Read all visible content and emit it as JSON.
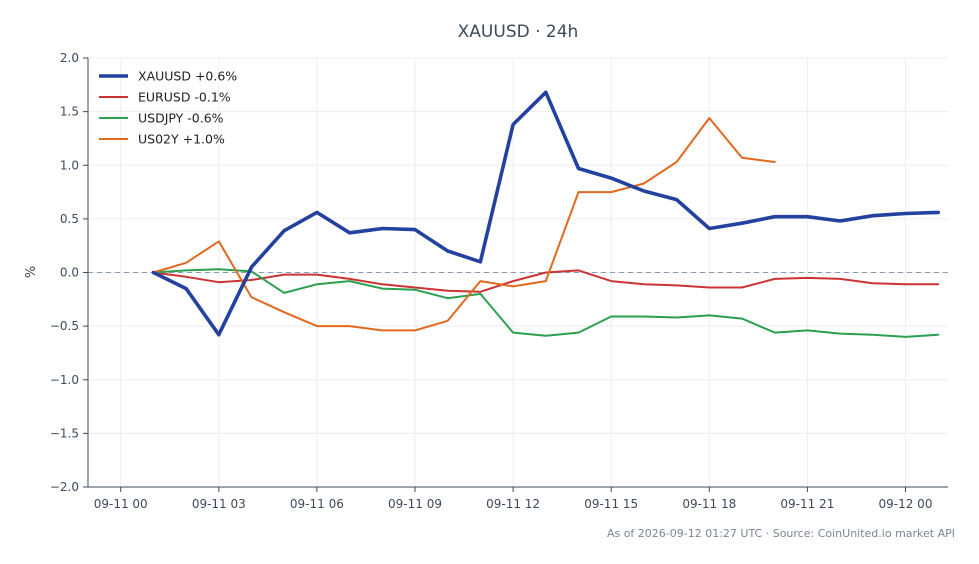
{
  "chart_data": {
    "type": "line",
    "title": "XAUUSD · 24h",
    "xlabel": "",
    "ylabel": "%",
    "ylim": [
      -2.0,
      2.0
    ],
    "yticks": [
      2.0,
      1.5,
      1.0,
      0.5,
      0.0,
      -0.5,
      -1.0,
      -1.5,
      -2.0
    ],
    "ytick_labels": [
      "2.0",
      "1.5",
      "1.0",
      "0.5",
      "0.0",
      "−0.5",
      "−1.0",
      "−1.5",
      "−2.0"
    ],
    "xticks": [
      0,
      3,
      6,
      9,
      12,
      15,
      18,
      21,
      24
    ],
    "xtick_labels": [
      "09-11 00",
      "09-11 03",
      "09-11 06",
      "09-11 09",
      "09-11 12",
      "09-11 15",
      "09-11 18",
      "09-11 21",
      "09-12 00"
    ],
    "grid": true,
    "legend_position": "top-left",
    "baseline": 0.0,
    "series": [
      {
        "name": "XAUUSD +0.6%",
        "color": "#2342a0",
        "width": 3.6,
        "x": [
          1,
          2,
          3,
          4,
          5,
          6,
          7,
          8,
          9,
          10,
          11,
          12,
          13,
          14,
          15,
          16,
          17,
          18,
          19,
          20,
          21,
          22,
          23,
          24,
          25
        ],
        "y": [
          0.0,
          -0.15,
          -0.58,
          0.05,
          0.39,
          0.56,
          0.37,
          0.41,
          0.4,
          0.2,
          0.1,
          1.38,
          1.68,
          0.97,
          0.88,
          0.76,
          0.68,
          0.41,
          0.46,
          0.52,
          0.52,
          0.48,
          0.53,
          0.55,
          0.56
        ]
      },
      {
        "name": "EURUSD -0.1%",
        "color": "#cc3333",
        "width": 2,
        "x": [
          1,
          2,
          3,
          4,
          5,
          6,
          7,
          8,
          9,
          10,
          11,
          12,
          13,
          14,
          15,
          16,
          17,
          18,
          19,
          20,
          21,
          22,
          23,
          24,
          25
        ],
        "y": [
          0.0,
          -0.04,
          -0.09,
          -0.07,
          -0.02,
          -0.02,
          -0.06,
          -0.11,
          -0.14,
          -0.17,
          -0.18,
          -0.08,
          0.0,
          0.02,
          -0.08,
          -0.11,
          -0.12,
          -0.14,
          -0.14,
          -0.06,
          -0.05,
          -0.06,
          -0.1,
          -0.11,
          -0.11
        ]
      },
      {
        "name": "USDJPY -0.6%",
        "color": "#2aa050",
        "width": 2,
        "x": [
          1,
          2,
          3,
          4,
          5,
          6,
          7,
          8,
          9,
          10,
          11,
          12,
          13,
          14,
          15,
          16,
          17,
          18,
          19,
          20,
          21,
          22,
          23,
          24,
          25
        ],
        "y": [
          0.0,
          0.02,
          0.03,
          0.01,
          -0.19,
          -0.11,
          -0.08,
          -0.15,
          -0.16,
          -0.24,
          -0.2,
          -0.56,
          -0.59,
          -0.56,
          -0.41,
          -0.41,
          -0.42,
          -0.4,
          -0.43,
          -0.56,
          -0.54,
          -0.57,
          -0.58,
          -0.6,
          -0.58
        ]
      },
      {
        "name": "US02Y +1.0%",
        "color": "#e0691f",
        "width": 2,
        "x": [
          1,
          2,
          3,
          4,
          5,
          6,
          7,
          8,
          9,
          10,
          11,
          12,
          13,
          14,
          15,
          16,
          17,
          18,
          19,
          20
        ],
        "y": [
          0.0,
          0.09,
          0.29,
          -0.23,
          -0.37,
          -0.5,
          -0.5,
          -0.54,
          -0.54,
          -0.45,
          -0.08,
          -0.13,
          -0.08,
          0.75,
          0.75,
          0.83,
          1.03,
          1.44,
          1.07,
          1.03
        ]
      }
    ]
  },
  "footer": {
    "text": "As of 2026-09-12 01:27 UTC · Source: CoinUnited.io market API"
  }
}
